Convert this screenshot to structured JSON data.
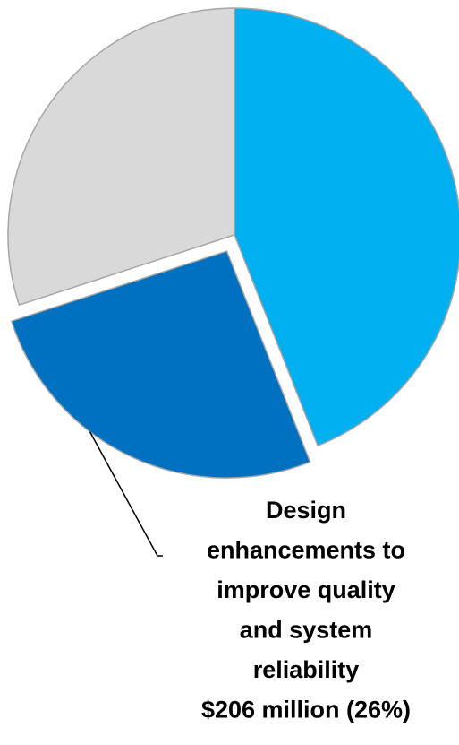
{
  "chart_data": {
    "type": "pie",
    "title": "",
    "slices": [
      {
        "value": 44,
        "color": "#00b0f0",
        "exploded": false,
        "label_lines": []
      },
      {
        "value": 26,
        "color": "#0070c0",
        "exploded": true,
        "label_lines": [
          "Design",
          "enhancements to",
          "improve quality",
          "and system",
          "reliability",
          "$206 million (26%)"
        ]
      },
      {
        "value": 30,
        "color": "#d9d9d9",
        "exploded": false,
        "label_lines": []
      }
    ],
    "start_angle_deg": 0,
    "direction": "clockwise",
    "legend": "none",
    "slice_edge_color": "#a6a6a6",
    "leader_line_color": "#000000"
  }
}
